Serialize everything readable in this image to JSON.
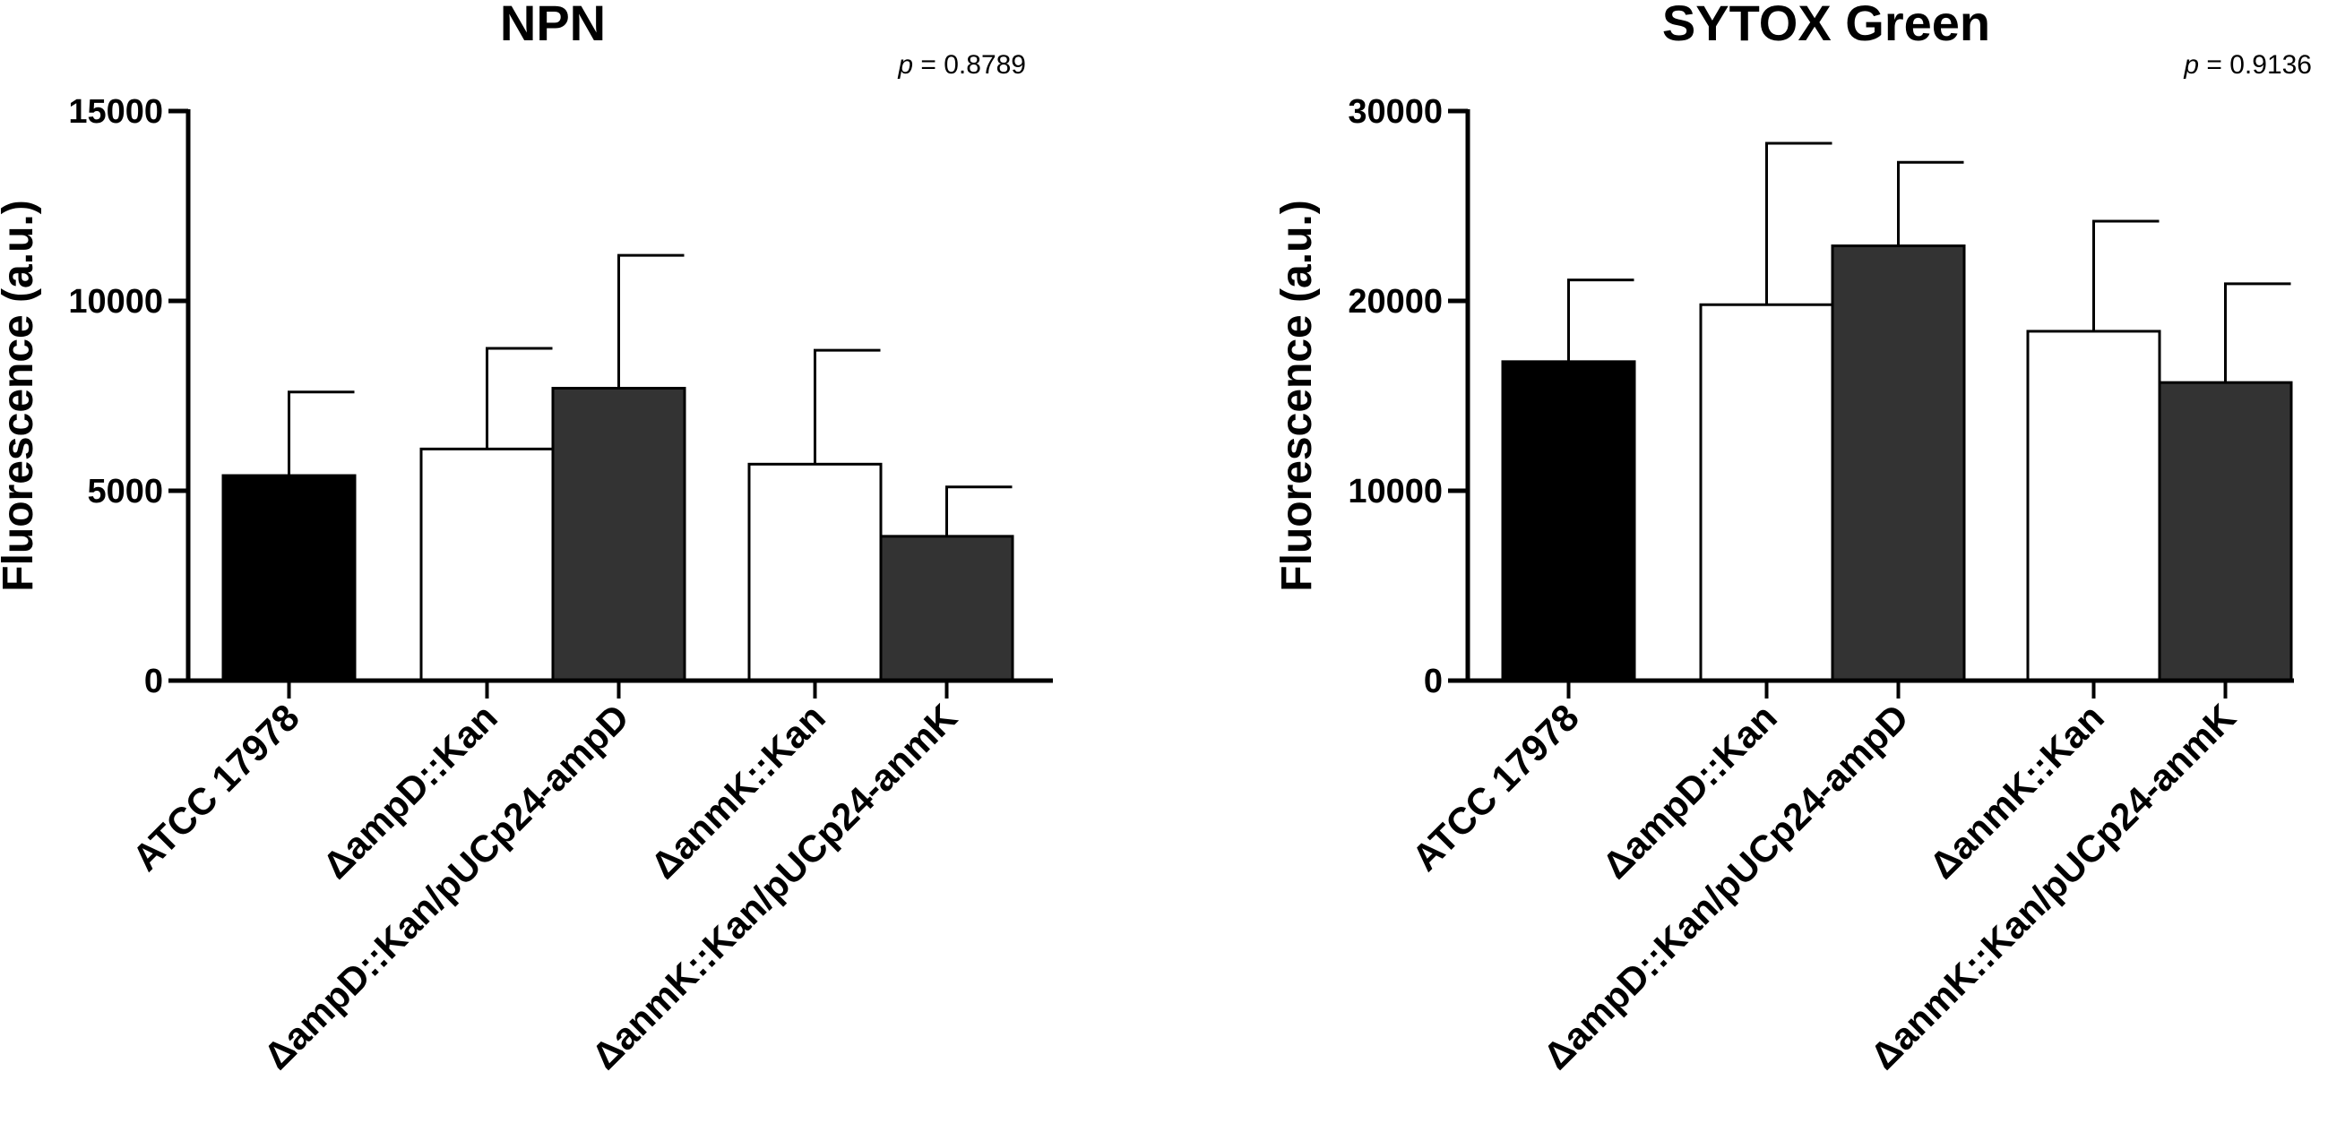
{
  "chart_data": [
    {
      "type": "bar",
      "title": "NPN",
      "annotation": {
        "prefix": "p",
        "text": " = 0.8789"
      },
      "ylabel": "Fluorescence (a.u.)",
      "xlabel": "",
      "ylim": [
        0,
        15000
      ],
      "yticks": [
        0,
        5000,
        10000,
        15000
      ],
      "ytick_labels": [
        "0",
        "5000",
        "10000",
        "15000"
      ],
      "grid": false,
      "categories": [
        "ATCC 17978",
        "ΔampD::Kan",
        "ΔampD::Kan/pUCp24-ampD",
        "ΔanmK::Kan",
        "ΔanmK::Kan/pUCp24-anmK"
      ],
      "groups": [
        [
          0
        ],
        [
          1,
          2
        ],
        [
          3,
          4
        ]
      ],
      "values": [
        5400,
        6100,
        7700,
        5700,
        3800
      ],
      "errors": [
        2200,
        2650,
        3500,
        3000,
        1300
      ],
      "colors": [
        "#000000",
        "#ffffff",
        "#333333",
        "#ffffff",
        "#333333"
      ]
    },
    {
      "type": "bar",
      "title": "SYTOX Green",
      "annotation": {
        "prefix": "p",
        "text": " = 0.9136"
      },
      "ylabel": "Fluorescence (a.u.)",
      "xlabel": "",
      "ylim": [
        0,
        30000
      ],
      "yticks": [
        0,
        10000,
        20000,
        30000
      ],
      "ytick_labels": [
        "0",
        "10000",
        "20000",
        "30000"
      ],
      "grid": false,
      "categories": [
        "ATCC 17978",
        "ΔampD::Kan",
        "ΔampD::Kan/pUCp24-ampD",
        "ΔanmK::Kan",
        "ΔanmK::Kan/pUCp24-anmK"
      ],
      "groups": [
        [
          0
        ],
        [
          1,
          2
        ],
        [
          3,
          4
        ]
      ],
      "values": [
        16800,
        19800,
        22900,
        18400,
        15700
      ],
      "errors": [
        4300,
        8500,
        4400,
        5800,
        5200
      ],
      "colors": [
        "#000000",
        "#ffffff",
        "#333333",
        "#ffffff",
        "#333333"
      ]
    }
  ]
}
